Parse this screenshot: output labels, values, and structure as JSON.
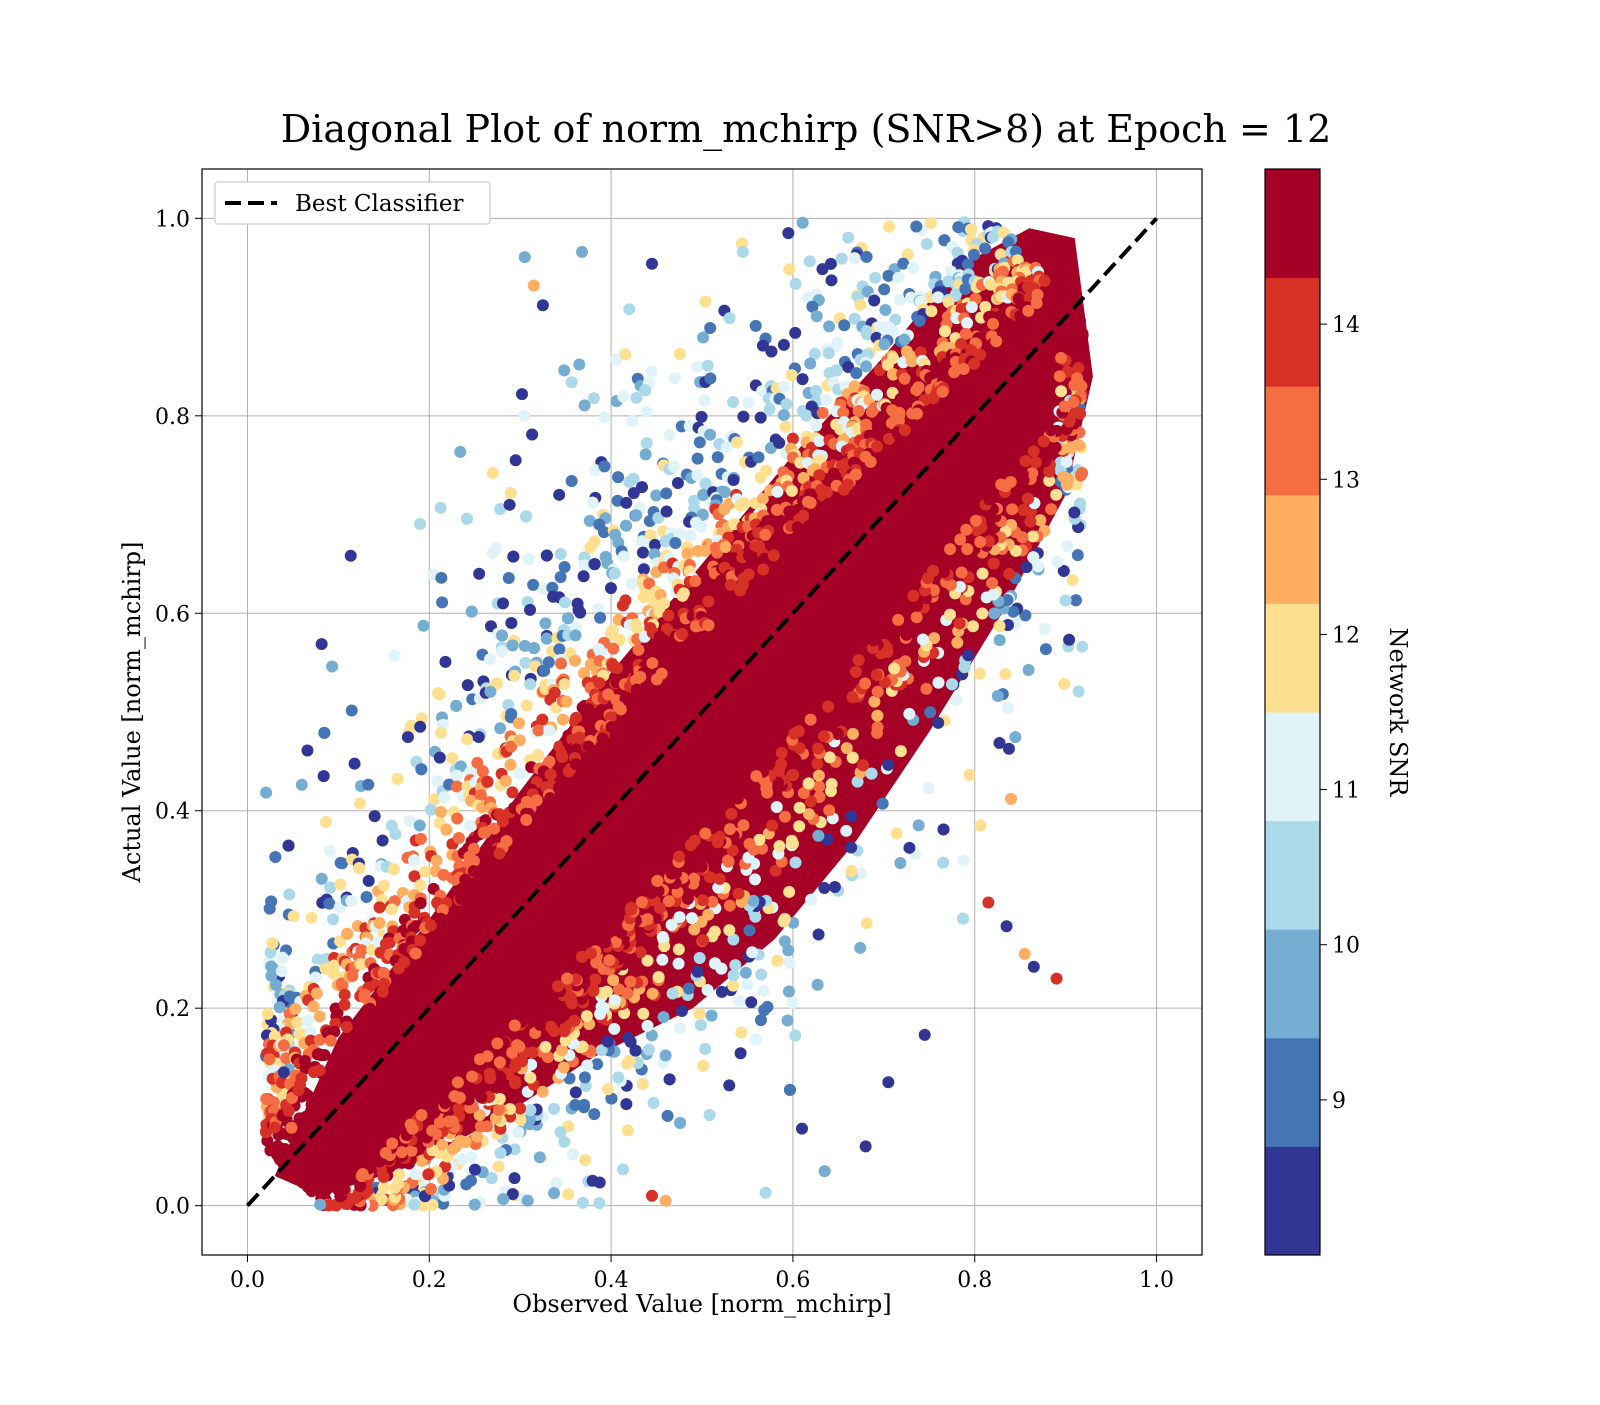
{
  "chart_data": {
    "type": "scatter",
    "title": "Diagonal Plot of norm_mchirp (SNR>8) at Epoch = 12",
    "xlabel": "Observed Value [norm_mchirp]",
    "ylabel": "Actual Value [norm_mchirp]",
    "xlim": [
      -0.05,
      1.05
    ],
    "ylim": [
      -0.05,
      1.05
    ],
    "xticks": [
      "0.0",
      "0.2",
      "0.4",
      "0.6",
      "0.8",
      "1.0"
    ],
    "yticks": [
      "0.0",
      "0.2",
      "0.4",
      "0.6",
      "0.8",
      "1.0"
    ],
    "grid": true,
    "legend": {
      "placement": "top-left",
      "entries": [
        "Best Classifier"
      ]
    },
    "reference_line": {
      "name": "Best Classifier",
      "style": "dashed",
      "color": "#000000",
      "x": [
        0.0,
        1.0
      ],
      "y": [
        0.0,
        1.0
      ]
    },
    "colorbar": {
      "label": "Network SNR",
      "range": [
        8.0,
        15.0
      ],
      "ticks": [
        "9",
        "10",
        "11",
        "12",
        "13",
        "14"
      ],
      "tick_values": [
        9,
        10,
        11,
        12,
        13,
        14
      ],
      "colors": [
        "#313695",
        "#4575b4",
        "#74add1",
        "#abd9e9",
        "#e0f3f8",
        "#fee090",
        "#fdae61",
        "#f46d43",
        "#d73027",
        "#a50026"
      ]
    },
    "dense_band": {
      "description_points": [
        [
          0.05,
          0.02
        ],
        [
          0.2,
          0.2
        ],
        [
          0.4,
          0.4
        ],
        [
          0.6,
          0.6
        ],
        [
          0.8,
          0.8
        ],
        [
          0.9,
          0.95
        ]
      ],
      "color": "#a50026"
    },
    "outliers": [
      {
        "x": 0.066,
        "y": 0.461,
        "snr": 8.3
      },
      {
        "x": 0.19,
        "y": 0.485,
        "snr": 8.3
      },
      {
        "x": 0.302,
        "y": 0.822,
        "snr": 8.3
      },
      {
        "x": 0.325,
        "y": 0.912,
        "snr": 8.3
      },
      {
        "x": 0.368,
        "y": 0.966,
        "snr": 9.5
      },
      {
        "x": 0.445,
        "y": 0.954,
        "snr": 8.3
      },
      {
        "x": 0.315,
        "y": 0.932,
        "snr": 12.5
      },
      {
        "x": 0.295,
        "y": 0.755,
        "snr": 8.3
      },
      {
        "x": 0.27,
        "y": 0.742,
        "snr": 11.5
      },
      {
        "x": 0.365,
        "y": 0.852,
        "snr": 9.5
      },
      {
        "x": 0.42,
        "y": 0.908,
        "snr": 10.5
      },
      {
        "x": 0.545,
        "y": 0.966,
        "snr": 10.5
      },
      {
        "x": 0.595,
        "y": 0.985,
        "snr": 8.3
      },
      {
        "x": 0.89,
        "y": 0.23,
        "snr": 13.8
      },
      {
        "x": 0.865,
        "y": 0.242,
        "snr": 8.3
      },
      {
        "x": 0.855,
        "y": 0.255,
        "snr": 12.5
      },
      {
        "x": 0.835,
        "y": 0.283,
        "snr": 8.3
      },
      {
        "x": 0.815,
        "y": 0.307,
        "snr": 13.8
      },
      {
        "x": 0.84,
        "y": 0.412,
        "snr": 12.5
      },
      {
        "x": 0.9,
        "y": 0.613,
        "snr": 10.5
      },
      {
        "x": 0.915,
        "y": 0.77,
        "snr": 12.5
      },
      {
        "x": 0.68,
        "y": 0.06,
        "snr": 8.3
      },
      {
        "x": 0.745,
        "y": 0.173,
        "snr": 8.3
      },
      {
        "x": 0.705,
        "y": 0.125,
        "snr": 8.3
      },
      {
        "x": 0.635,
        "y": 0.035,
        "snr": 9.5
      },
      {
        "x": 0.61,
        "y": 0.078,
        "snr": 8.3
      },
      {
        "x": 0.57,
        "y": 0.013,
        "snr": 10.5
      },
      {
        "x": 0.46,
        "y": 0.005,
        "snr": 12.5
      },
      {
        "x": 0.445,
        "y": 0.01,
        "snr": 13.8
      },
      {
        "x": 0.25,
        "y": 0.001,
        "snr": 9.5
      },
      {
        "x": 0.08,
        "y": 0.001,
        "snr": 9.5
      },
      {
        "x": 0.04,
        "y": 0.135,
        "snr": 8.3
      }
    ]
  }
}
